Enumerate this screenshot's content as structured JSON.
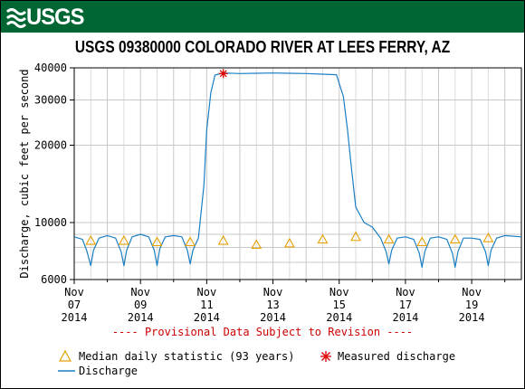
{
  "header": {
    "logo_text": "USGS",
    "brand_color": "#006633"
  },
  "chart_data": {
    "type": "line",
    "title": "USGS 09380000 COLORADO RIVER AT LEES FERRY, AZ",
    "ylabel": "Discharge, cubic feet per second",
    "xlabel": "",
    "y_scale": "log",
    "ylim": [
      6000,
      40000
    ],
    "y_ticks": [
      6000,
      10000,
      20000,
      30000,
      40000
    ],
    "y_tick_labels": [
      "6000",
      "10000",
      "20000",
      "30000",
      "40000"
    ],
    "xlim": [
      "2014-11-07",
      "2014-11-20 12:00"
    ],
    "x_ticks": [
      {
        "date": "2014-11-07",
        "label": [
          "Nov",
          "07",
          "2014"
        ]
      },
      {
        "date": "2014-11-09",
        "label": [
          "Nov",
          "09",
          "2014"
        ]
      },
      {
        "date": "2014-11-11",
        "label": [
          "Nov",
          "11",
          "2014"
        ]
      },
      {
        "date": "2014-11-13",
        "label": [
          "Nov",
          "13",
          "2014"
        ]
      },
      {
        "date": "2014-11-15",
        "label": [
          "Nov",
          "15",
          "2014"
        ]
      },
      {
        "date": "2014-11-17",
        "label": [
          "Nov",
          "17",
          "2014"
        ]
      },
      {
        "date": "2014-11-19",
        "label": [
          "Nov",
          "19",
          "2014"
        ]
      }
    ],
    "grid": true,
    "series": [
      {
        "name": "Discharge",
        "color": "#1a7fc4",
        "points": [
          [
            "2014-11-07 00:00",
            8800
          ],
          [
            "2014-11-07 06:00",
            8600
          ],
          [
            "2014-11-07 09:00",
            7800
          ],
          [
            "2014-11-07 12:00",
            6800
          ],
          [
            "2014-11-07 14:00",
            7800
          ],
          [
            "2014-11-07 18:00",
            8700
          ],
          [
            "2014-11-08 00:00",
            8900
          ],
          [
            "2014-11-08 06:00",
            8700
          ],
          [
            "2014-11-08 10:00",
            7700
          ],
          [
            "2014-11-08 12:00",
            6800
          ],
          [
            "2014-11-08 14:00",
            7800
          ],
          [
            "2014-11-08 18:00",
            8800
          ],
          [
            "2014-11-09 00:00",
            9000
          ],
          [
            "2014-11-09 06:00",
            8800
          ],
          [
            "2014-11-09 10:00",
            7800
          ],
          [
            "2014-11-09 12:00",
            6800
          ],
          [
            "2014-11-09 14:00",
            7900
          ],
          [
            "2014-11-09 18:00",
            8800
          ],
          [
            "2014-11-10 00:00",
            8900
          ],
          [
            "2014-11-10 06:00",
            8800
          ],
          [
            "2014-11-10 10:00",
            7800
          ],
          [
            "2014-11-10 12:00",
            6900
          ],
          [
            "2014-11-10 14:00",
            7800
          ],
          [
            "2014-11-10 18:00",
            8700
          ],
          [
            "2014-11-10 22:00",
            14000
          ],
          [
            "2014-11-11 00:00",
            23000
          ],
          [
            "2014-11-11 03:00",
            32000
          ],
          [
            "2014-11-11 06:00",
            37500
          ],
          [
            "2014-11-11 12:00",
            38200
          ],
          [
            "2014-11-12 00:00",
            38000
          ],
          [
            "2014-11-12 12:00",
            38100
          ],
          [
            "2014-11-13 00:00",
            38200
          ],
          [
            "2014-11-13 12:00",
            38100
          ],
          [
            "2014-11-14 00:00",
            38000
          ],
          [
            "2014-11-14 12:00",
            37800
          ],
          [
            "2014-11-14 22:00",
            37600
          ],
          [
            "2014-11-15 03:00",
            31000
          ],
          [
            "2014-11-15 06:00",
            23000
          ],
          [
            "2014-11-15 09:00",
            16000
          ],
          [
            "2014-11-15 12:00",
            11500
          ],
          [
            "2014-11-15 18:00",
            10000
          ],
          [
            "2014-11-16 00:00",
            9600
          ],
          [
            "2014-11-16 06:00",
            8700
          ],
          [
            "2014-11-16 10:00",
            7700
          ],
          [
            "2014-11-16 12:00",
            6900
          ],
          [
            "2014-11-16 14:00",
            7800
          ],
          [
            "2014-11-16 18:00",
            8700
          ],
          [
            "2014-11-17 00:00",
            8800
          ],
          [
            "2014-11-17 06:00",
            8600
          ],
          [
            "2014-11-17 10:00",
            7600
          ],
          [
            "2014-11-17 12:00",
            6700
          ],
          [
            "2014-11-17 14:00",
            7700
          ],
          [
            "2014-11-17 18:00",
            8700
          ],
          [
            "2014-11-18 00:00",
            8800
          ],
          [
            "2014-11-18 06:00",
            8600
          ],
          [
            "2014-11-18 10:00",
            7600
          ],
          [
            "2014-11-18 12:00",
            6700
          ],
          [
            "2014-11-18 14:00",
            7700
          ],
          [
            "2014-11-18 18:00",
            8700
          ],
          [
            "2014-11-19 00:00",
            8700
          ],
          [
            "2014-11-19 06:00",
            8600
          ],
          [
            "2014-11-19 10:00",
            7700
          ],
          [
            "2014-11-19 12:00",
            6800
          ],
          [
            "2014-11-19 14:00",
            7800
          ],
          [
            "2014-11-19 18:00",
            8700
          ],
          [
            "2014-11-20 00:00",
            8900
          ],
          [
            "2014-11-20 12:00",
            8800
          ]
        ]
      },
      {
        "name": "Median daily statistic (93 years)",
        "marker": "triangle",
        "color": "#e6a000",
        "points": [
          [
            "2014-11-07 12:00",
            8500
          ],
          [
            "2014-11-08 12:00",
            8500
          ],
          [
            "2014-11-09 12:00",
            8400
          ],
          [
            "2014-11-10 12:00",
            8400
          ],
          [
            "2014-11-11 12:00",
            8500
          ],
          [
            "2014-11-12 12:00",
            8200
          ],
          [
            "2014-11-13 12:00",
            8300
          ],
          [
            "2014-11-14 12:00",
            8600
          ],
          [
            "2014-11-15 12:00",
            8800
          ],
          [
            "2014-11-16 12:00",
            8600
          ],
          [
            "2014-11-17 12:00",
            8400
          ],
          [
            "2014-11-18 12:00",
            8600
          ],
          [
            "2014-11-19 12:00",
            8700
          ]
        ]
      },
      {
        "name": "Measured discharge",
        "marker": "asterisk",
        "color": "#dd0000",
        "points": [
          [
            "2014-11-11 12:00",
            38000
          ]
        ]
      }
    ],
    "annotation": "---- Provisional Data Subject to Revision ----",
    "legend_placement": "bottom-left"
  }
}
